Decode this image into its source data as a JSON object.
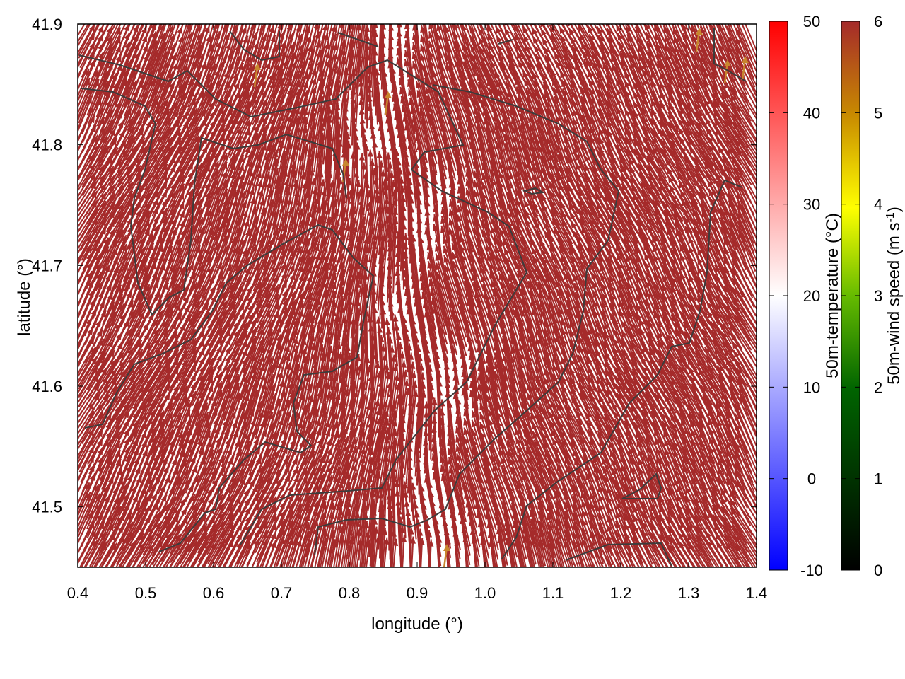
{
  "chart_data": {
    "type": "vector-field",
    "xlabel": "longitude (°)",
    "ylabel": "latitude (°)",
    "xlim": [
      0.4,
      1.4
    ],
    "ylim": [
      41.45,
      41.9
    ],
    "xticks": [
      "0.4",
      "0.5",
      "0.6",
      "0.7",
      "0.8",
      "0.9",
      "1.0",
      "1.1",
      "1.2",
      "1.3",
      "1.4"
    ],
    "yticks": [
      "41.5",
      "41.6",
      "41.7",
      "41.8",
      "41.9"
    ],
    "arrow_color": "#a52a2a",
    "highlight_arrow_color": "#c8862e",
    "contour_color": "#3c3c3c",
    "grid": false,
    "colorbars": [
      {
        "name": "temperature",
        "label": "50m-temperature (°C)",
        "range": [
          -10,
          50
        ],
        "ticks": [
          "-10",
          "0",
          "10",
          "20",
          "30",
          "40",
          "50"
        ],
        "colors": [
          "#0000ff",
          "#ffffff",
          "#ff0000"
        ]
      },
      {
        "name": "wind",
        "label_main": "50m-wind speed (m s",
        "label_sup": "-1",
        "label_end": ")",
        "range": [
          0,
          6
        ],
        "ticks": [
          "0",
          "1",
          "2",
          "3",
          "4",
          "5",
          "6"
        ],
        "colors": [
          "#000000",
          "#006400",
          "#66bb00",
          "#ffff00",
          "#c88a00",
          "#a52a2a"
        ]
      }
    ]
  }
}
